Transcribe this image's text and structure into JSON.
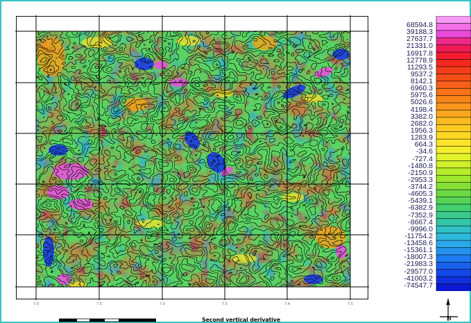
{
  "map": {
    "caption": "Second vertical derivative",
    "legend_values": [
      "68594.8",
      "39188.3",
      "27637.7",
      "21331.0",
      "16917.8",
      "12778.9",
      "11293.5",
      "9537.2",
      "8142.1",
      "6960.3",
      "5975.6",
      "5026.6",
      "4198.4",
      "3382.0",
      "2682.0",
      "1956.3",
      "1283.9",
      "664.3",
      "-34.6",
      "-727.4",
      "-1480.8",
      "-2150.9",
      "-2953.3",
      "-3744.2",
      "-4605.3",
      "-5439.1",
      "-6382.9",
      "-7352.9",
      "-8667.4",
      "-9996.0",
      "-11754.2",
      "-13458.6",
      "-15361.1",
      "-18007.3",
      "-21983.3",
      "-29577.0",
      "-41003.2",
      "-74547.7"
    ],
    "legend_colors": [
      "#f79af2",
      "#f36fe8",
      "#e94ad8",
      "#ee2a8a",
      "#f01a55",
      "#f41a30",
      "#f52a1f",
      "#f53c1a",
      "#f64e18",
      "#f66018",
      "#f77218",
      "#f8841a",
      "#f9961c",
      "#fba81e",
      "#fcba20",
      "#fdca22",
      "#fed826",
      "#fce52a",
      "#f4ee2c",
      "#e2f22a",
      "#cdf02a",
      "#b6ec2a",
      "#9ce62e",
      "#84e036",
      "#6cd942",
      "#56d456",
      "#44d070",
      "#3acb8c",
      "#34c6a8",
      "#30c2c6",
      "#2eb8dc",
      "#2aa8ea",
      "#2494ee",
      "#1e7cf0",
      "#1862ee",
      "#1448e8",
      "#1030de",
      "#0a18d0"
    ],
    "x_ticks": [
      "7.0",
      "7.5",
      "7.0",
      "7.5",
      "7.4",
      "7.5"
    ],
    "north_symbol": "north-arrow",
    "scale_bar": "scale-bar"
  }
}
